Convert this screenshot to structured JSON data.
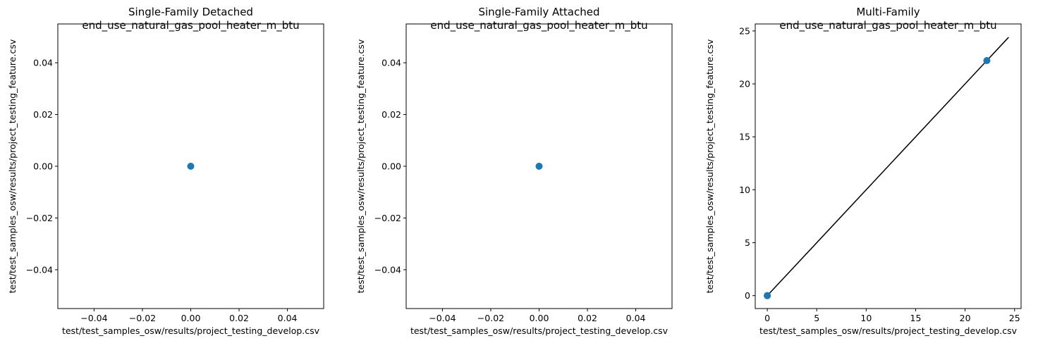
{
  "marker_color": "#1f77b4",
  "line_color": "#000000",
  "chart_data": [
    {
      "type": "scatter",
      "title": "Single-Family Detached",
      "subtitle": "end_use_natural_gas_pool_heater_m_btu",
      "xlabel": "test/test_samples_osw/results/project_testing_develop.csv",
      "ylabel": "test/test_samples_osw/results/project_testing_feature.csv",
      "xlim": [
        -0.055,
        0.055
      ],
      "ylim": [
        -0.055,
        0.055
      ],
      "xticks": [
        -0.04,
        -0.02,
        0.0,
        0.02,
        0.04
      ],
      "xtick_labels": [
        "−0.04",
        "−0.02",
        "0.00",
        "0.02",
        "0.04"
      ],
      "yticks": [
        -0.04,
        -0.02,
        0.0,
        0.02,
        0.04
      ],
      "ytick_labels": [
        "−0.04",
        "−0.02",
        "0.00",
        "0.02",
        "0.04"
      ],
      "points": [
        {
          "x": 0,
          "y": 0
        }
      ],
      "reference_line": null
    },
    {
      "type": "scatter",
      "title": "Single-Family Attached",
      "subtitle": "end_use_natural_gas_pool_heater_m_btu",
      "xlabel": "test/test_samples_osw/results/project_testing_develop.csv",
      "ylabel": "test/test_samples_osw/results/project_testing_feature.csv",
      "xlim": [
        -0.055,
        0.055
      ],
      "ylim": [
        -0.055,
        0.055
      ],
      "xticks": [
        -0.04,
        -0.02,
        0.0,
        0.02,
        0.04
      ],
      "xtick_labels": [
        "−0.04",
        "−0.02",
        "0.00",
        "0.02",
        "0.04"
      ],
      "yticks": [
        -0.04,
        -0.02,
        0.0,
        0.02,
        0.04
      ],
      "ytick_labels": [
        "−0.04",
        "−0.02",
        "0.00",
        "0.02",
        "0.04"
      ],
      "points": [
        {
          "x": 0,
          "y": 0
        }
      ],
      "reference_line": null
    },
    {
      "type": "scatter",
      "title": "Multi-Family",
      "subtitle": "end_use_natural_gas_pool_heater_m_btu",
      "xlabel": "test/test_samples_osw/results/project_testing_develop.csv",
      "ylabel": "test/test_samples_osw/results/project_testing_feature.csv",
      "xlim": [
        -1.22,
        25.66
      ],
      "ylim": [
        -1.22,
        25.66
      ],
      "xticks": [
        0,
        5,
        10,
        15,
        20,
        25
      ],
      "xtick_labels": [
        "0",
        "5",
        "10",
        "15",
        "20",
        "25"
      ],
      "yticks": [
        0,
        5,
        10,
        15,
        20,
        25
      ],
      "ytick_labels": [
        "0",
        "5",
        "10",
        "15",
        "20",
        "25"
      ],
      "points": [
        {
          "x": 0,
          "y": 0
        },
        {
          "x": 0,
          "y": 0
        },
        {
          "x": 22.2,
          "y": 22.2
        }
      ],
      "reference_line": {
        "x": [
          0,
          24.4
        ],
        "y": [
          0,
          24.4
        ]
      }
    }
  ]
}
